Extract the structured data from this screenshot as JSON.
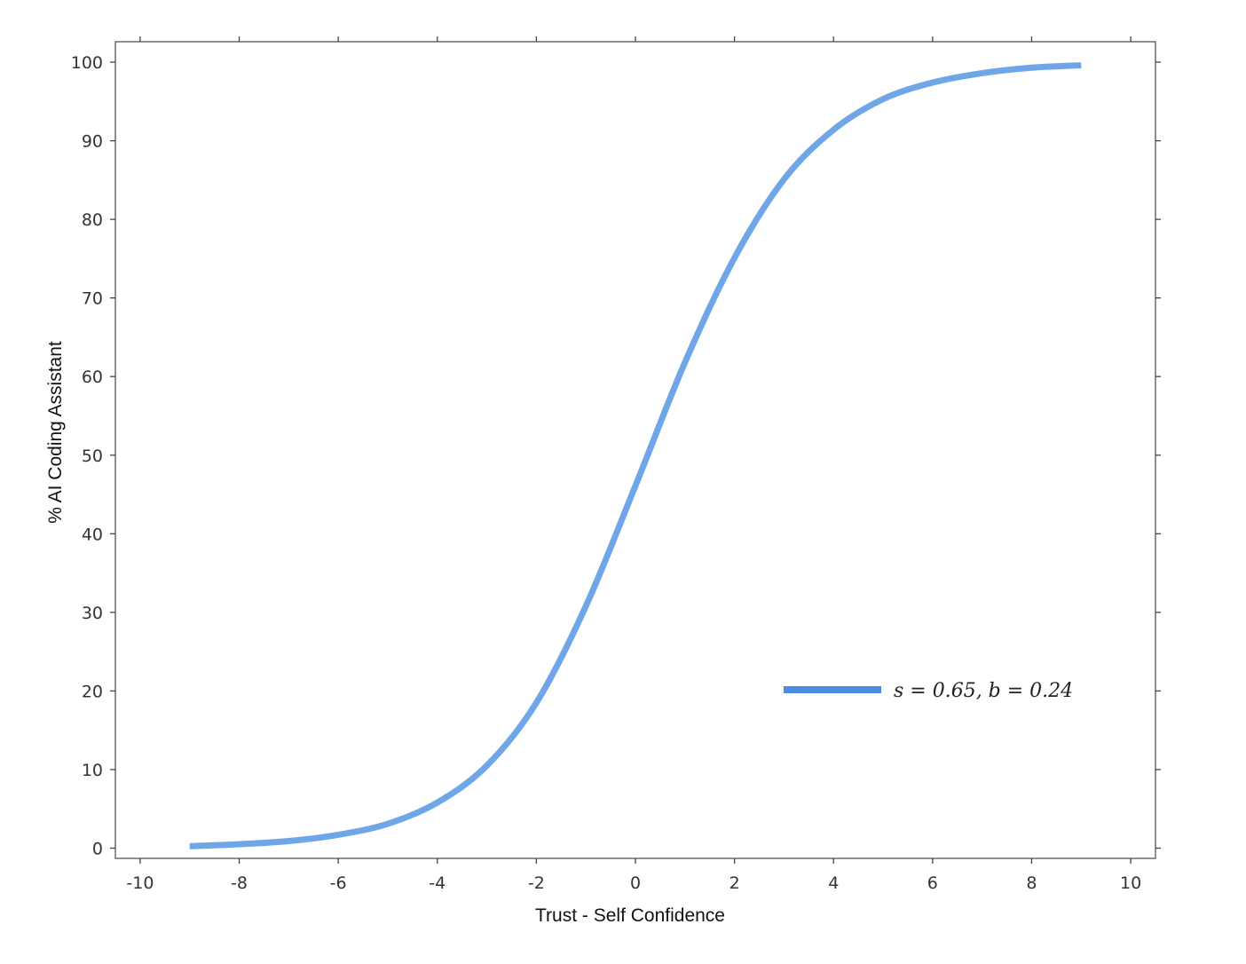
{
  "chart_data": {
    "type": "line",
    "title": "",
    "xlabel": "Trust - Self Confidence",
    "ylabel": "% AI Coding Assistant",
    "xlim": [
      -10.5,
      10.5
    ],
    "ylim": [
      -1.3,
      102.6
    ],
    "xticks": [
      -10,
      -8,
      -6,
      -4,
      -2,
      0,
      2,
      4,
      6,
      8,
      10
    ],
    "xtick_labels": [
      "-10",
      "-8",
      "-6",
      "-4",
      "-2",
      "0",
      "2",
      "4",
      "6",
      "8",
      "10"
    ],
    "yticks": [
      0,
      10,
      20,
      30,
      40,
      50,
      60,
      70,
      80,
      90,
      100
    ],
    "ytick_labels": [
      "0",
      "10",
      "20",
      "30",
      "40",
      "50",
      "60",
      "70",
      "80",
      "90",
      "100"
    ],
    "grid": false,
    "legend_position": "lower-right",
    "series": [
      {
        "name": "s = 0.65,  b =  0.24",
        "color": "#6fa6e8",
        "legend_color": "#4a8ee0",
        "x": [
          -9,
          -8,
          -7,
          -6,
          -5,
          -4,
          -3,
          -2,
          -1,
          0,
          1,
          2,
          3,
          4,
          5,
          6,
          7,
          8,
          9
        ],
        "y": [
          0.25,
          0.5,
          0.9,
          1.7,
          3.1,
          5.8,
          10.5,
          18.5,
          30.8,
          46.1,
          61.8,
          75.1,
          85.1,
          91.4,
          95.3,
          97.4,
          98.6,
          99.3,
          99.6
        ]
      }
    ]
  }
}
